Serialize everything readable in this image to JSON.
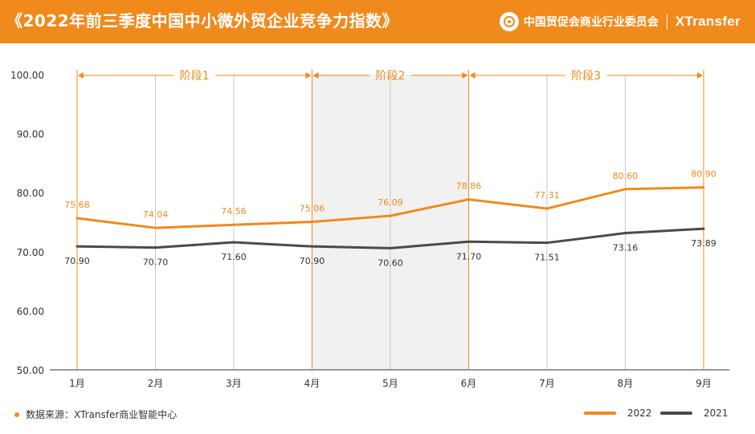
{
  "header": {
    "title": "《2022年前三季度中国中小微外贸企业竞争力指数》",
    "org_name": "中国贸促会商业行业委员会",
    "brand": "XTransfer"
  },
  "footer": {
    "source": "数据来源：XTransfer商业智能中心"
  },
  "colors": {
    "accent": "#f08a1d",
    "series_2022": "#f08a1d",
    "series_2021": "#4a4a4a",
    "phase_shade": "#f1f1f1",
    "grid": "#c8c8c8"
  },
  "chart_data": {
    "type": "line",
    "categories": [
      "1月",
      "2月",
      "3月",
      "4月",
      "5月",
      "6月",
      "7月",
      "8月",
      "9月"
    ],
    "ylim": [
      50,
      100
    ],
    "yticks": [
      "50.00",
      "60.00",
      "70.00",
      "80.00",
      "90.00",
      "100.00"
    ],
    "series": [
      {
        "name": "2022",
        "values": [
          75.68,
          74.04,
          74.56,
          75.06,
          76.09,
          78.86,
          77.31,
          80.6,
          80.9
        ],
        "labels": [
          "75.68",
          "74.04",
          "74.56",
          "75.06",
          "76.09",
          "78.86",
          "77.31",
          "80.60",
          "80.90"
        ]
      },
      {
        "name": "2021",
        "values": [
          70.9,
          70.7,
          71.6,
          70.9,
          70.6,
          71.7,
          71.51,
          73.16,
          73.89
        ],
        "labels": [
          "70.90",
          "70.70",
          "71.60",
          "70.90",
          "70.60",
          "71.70",
          "71.51",
          "73.16",
          "73.89"
        ]
      }
    ],
    "phases": [
      {
        "label": "阶段1",
        "from": "1月",
        "to": "4月"
      },
      {
        "label": "阶段2",
        "from": "4月",
        "to": "6月"
      },
      {
        "label": "阶段3",
        "from": "6月",
        "to": "9月"
      }
    ],
    "legend_position": "bottom-right",
    "grid": "vertical"
  }
}
